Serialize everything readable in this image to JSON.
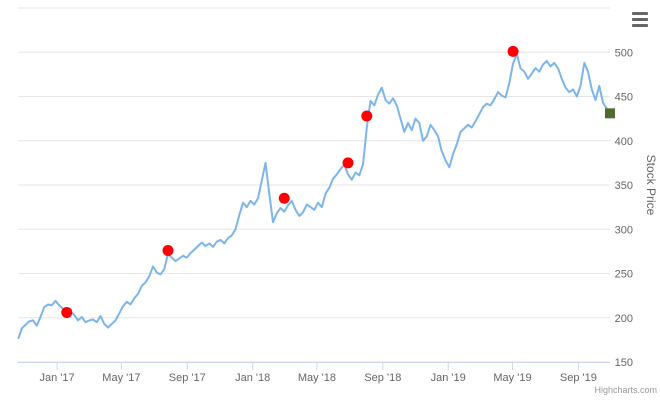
{
  "chart_data": {
    "type": "line",
    "title": "",
    "xlabel": "",
    "ylabel": "Stock Price",
    "credits": "Highcharts.com",
    "menu_icon": "hamburger-menu-icon",
    "x_ticks": [
      "Jan '17",
      "May '17",
      "Sep '17",
      "Jan '18",
      "May '18",
      "Sep '18",
      "Jan '19",
      "May '19",
      "Sep '19"
    ],
    "x_tick_dates": [
      "2017-01-01",
      "2017-05-01",
      "2017-09-01",
      "2018-01-01",
      "2018-05-01",
      "2018-09-01",
      "2019-01-01",
      "2019-05-01",
      "2019-09-01"
    ],
    "x_range": [
      "2016-10-20",
      "2019-10-30"
    ],
    "y_ticks": [
      150,
      200,
      250,
      300,
      350,
      400,
      450,
      500
    ],
    "ylim": [
      150,
      550
    ],
    "grid": true,
    "y_axis_position": "right",
    "colors": {
      "line": "#7cb5ec",
      "marker": "#ff0000",
      "last_marker": "#4e6b2f",
      "grid": "#e6e6e6"
    },
    "series": [
      {
        "values": [
          [
            "2016-10-21",
            177
          ],
          [
            "2016-10-27",
            188
          ],
          [
            "2016-11-03",
            192
          ],
          [
            "2016-11-10",
            196
          ],
          [
            "2016-11-17",
            197
          ],
          [
            "2016-11-24",
            191
          ],
          [
            "2016-12-01",
            201
          ],
          [
            "2016-12-08",
            212
          ],
          [
            "2016-12-15",
            215
          ],
          [
            "2016-12-22",
            214
          ],
          [
            "2016-12-29",
            219
          ],
          [
            "2017-01-05",
            214
          ],
          [
            "2017-01-12",
            210
          ],
          [
            "2017-01-19",
            205
          ],
          [
            "2017-01-26",
            207
          ],
          [
            "2017-02-02",
            203
          ],
          [
            "2017-02-09",
            197
          ],
          [
            "2017-02-16",
            201
          ],
          [
            "2017-02-23",
            195
          ],
          [
            "2017-03-02",
            197
          ],
          [
            "2017-03-09",
            198
          ],
          [
            "2017-03-16",
            195
          ],
          [
            "2017-03-23",
            202
          ],
          [
            "2017-03-30",
            193
          ],
          [
            "2017-04-06",
            189
          ],
          [
            "2017-04-13",
            193
          ],
          [
            "2017-04-20",
            197
          ],
          [
            "2017-04-27",
            205
          ],
          [
            "2017-05-04",
            213
          ],
          [
            "2017-05-11",
            218
          ],
          [
            "2017-05-18",
            215
          ],
          [
            "2017-05-25",
            222
          ],
          [
            "2017-06-01",
            227
          ],
          [
            "2017-06-08",
            236
          ],
          [
            "2017-06-15",
            240
          ],
          [
            "2017-06-22",
            247
          ],
          [
            "2017-06-29",
            258
          ],
          [
            "2017-07-06",
            251
          ],
          [
            "2017-07-13",
            249
          ],
          [
            "2017-07-20",
            255
          ],
          [
            "2017-07-27",
            272
          ],
          [
            "2017-08-03",
            268
          ],
          [
            "2017-08-10",
            264
          ],
          [
            "2017-08-17",
            267
          ],
          [
            "2017-08-24",
            270
          ],
          [
            "2017-08-31",
            268
          ],
          [
            "2017-09-07",
            273
          ],
          [
            "2017-09-14",
            277
          ],
          [
            "2017-09-21",
            281
          ],
          [
            "2017-09-28",
            285
          ],
          [
            "2017-10-05",
            281
          ],
          [
            "2017-10-12",
            284
          ],
          [
            "2017-10-19",
            280
          ],
          [
            "2017-10-26",
            286
          ],
          [
            "2017-11-02",
            288
          ],
          [
            "2017-11-09",
            284
          ],
          [
            "2017-11-16",
            290
          ],
          [
            "2017-11-23",
            293
          ],
          [
            "2017-11-30",
            300
          ],
          [
            "2017-12-07",
            316
          ],
          [
            "2017-12-14",
            330
          ],
          [
            "2017-12-21",
            325
          ],
          [
            "2017-12-28",
            332
          ],
          [
            "2018-01-04",
            328
          ],
          [
            "2018-01-11",
            335
          ],
          [
            "2018-01-18",
            355
          ],
          [
            "2018-01-25",
            375
          ],
          [
            "2018-02-01",
            340
          ],
          [
            "2018-02-08",
            308
          ],
          [
            "2018-02-15",
            318
          ],
          [
            "2018-02-22",
            324
          ],
          [
            "2018-03-01",
            320
          ],
          [
            "2018-03-08",
            327
          ],
          [
            "2018-03-15",
            332
          ],
          [
            "2018-03-22",
            322
          ],
          [
            "2018-03-29",
            315
          ],
          [
            "2018-04-05",
            319
          ],
          [
            "2018-04-12",
            328
          ],
          [
            "2018-04-19",
            325
          ],
          [
            "2018-04-26",
            322
          ],
          [
            "2018-05-03",
            330
          ],
          [
            "2018-05-10",
            325
          ],
          [
            "2018-05-17",
            340
          ],
          [
            "2018-05-24",
            347
          ],
          [
            "2018-05-31",
            357
          ],
          [
            "2018-06-07",
            362
          ],
          [
            "2018-06-14",
            368
          ],
          [
            "2018-06-21",
            373
          ],
          [
            "2018-06-28",
            362
          ],
          [
            "2018-07-05",
            356
          ],
          [
            "2018-07-12",
            364
          ],
          [
            "2018-07-19",
            361
          ],
          [
            "2018-07-26",
            373
          ],
          [
            "2018-08-02",
            415
          ],
          [
            "2018-08-09",
            445
          ],
          [
            "2018-08-16",
            440
          ],
          [
            "2018-08-23",
            452
          ],
          [
            "2018-08-30",
            460
          ],
          [
            "2018-09-06",
            446
          ],
          [
            "2018-09-13",
            442
          ],
          [
            "2018-09-20",
            448
          ],
          [
            "2018-09-27",
            440
          ],
          [
            "2018-10-04",
            425
          ],
          [
            "2018-10-11",
            410
          ],
          [
            "2018-10-18",
            420
          ],
          [
            "2018-10-25",
            412
          ],
          [
            "2018-11-01",
            425
          ],
          [
            "2018-11-08",
            420
          ],
          [
            "2018-11-15",
            400
          ],
          [
            "2018-11-22",
            405
          ],
          [
            "2018-11-29",
            418
          ],
          [
            "2018-12-06",
            412
          ],
          [
            "2018-12-13",
            405
          ],
          [
            "2018-12-20",
            388
          ],
          [
            "2018-12-27",
            378
          ],
          [
            "2019-01-03",
            370
          ],
          [
            "2019-01-10",
            385
          ],
          [
            "2019-01-17",
            396
          ],
          [
            "2019-01-24",
            410
          ],
          [
            "2019-01-31",
            414
          ],
          [
            "2019-02-07",
            418
          ],
          [
            "2019-02-14",
            415
          ],
          [
            "2019-02-21",
            422
          ],
          [
            "2019-02-28",
            430
          ],
          [
            "2019-03-07",
            438
          ],
          [
            "2019-03-14",
            442
          ],
          [
            "2019-03-21",
            440
          ],
          [
            "2019-03-28",
            447
          ],
          [
            "2019-04-04",
            455
          ],
          [
            "2019-04-11",
            451
          ],
          [
            "2019-04-18",
            449
          ],
          [
            "2019-04-25",
            465
          ],
          [
            "2019-05-02",
            487
          ],
          [
            "2019-05-09",
            498
          ],
          [
            "2019-05-16",
            482
          ],
          [
            "2019-05-23",
            478
          ],
          [
            "2019-05-30",
            470
          ],
          [
            "2019-06-06",
            476
          ],
          [
            "2019-06-13",
            482
          ],
          [
            "2019-06-20",
            478
          ],
          [
            "2019-06-27",
            486
          ],
          [
            "2019-07-04",
            490
          ],
          [
            "2019-07-11",
            484
          ],
          [
            "2019-07-18",
            488
          ],
          [
            "2019-07-25",
            482
          ],
          [
            "2019-08-01",
            470
          ],
          [
            "2019-08-08",
            460
          ],
          [
            "2019-08-15",
            455
          ],
          [
            "2019-08-22",
            458
          ],
          [
            "2019-08-29",
            450
          ],
          [
            "2019-09-05",
            462
          ],
          [
            "2019-09-12",
            488
          ],
          [
            "2019-09-19",
            478
          ],
          [
            "2019-09-26",
            458
          ],
          [
            "2019-10-03",
            446
          ],
          [
            "2019-10-10",
            462
          ],
          [
            "2019-10-17",
            443
          ],
          [
            "2019-10-24",
            436
          ],
          [
            "2019-10-28",
            430
          ]
        ]
      }
    ],
    "markers": [
      {
        "x": "2017-01-19",
        "y": 206
      },
      {
        "x": "2017-07-27",
        "y": 276
      },
      {
        "x": "2018-03-01",
        "y": 335
      },
      {
        "x": "2018-06-28",
        "y": 375
      },
      {
        "x": "2018-08-02",
        "y": 428
      },
      {
        "x": "2019-05-02",
        "y": 501
      }
    ],
    "last_marker": {
      "x": "2019-10-30",
      "y": 431
    }
  }
}
